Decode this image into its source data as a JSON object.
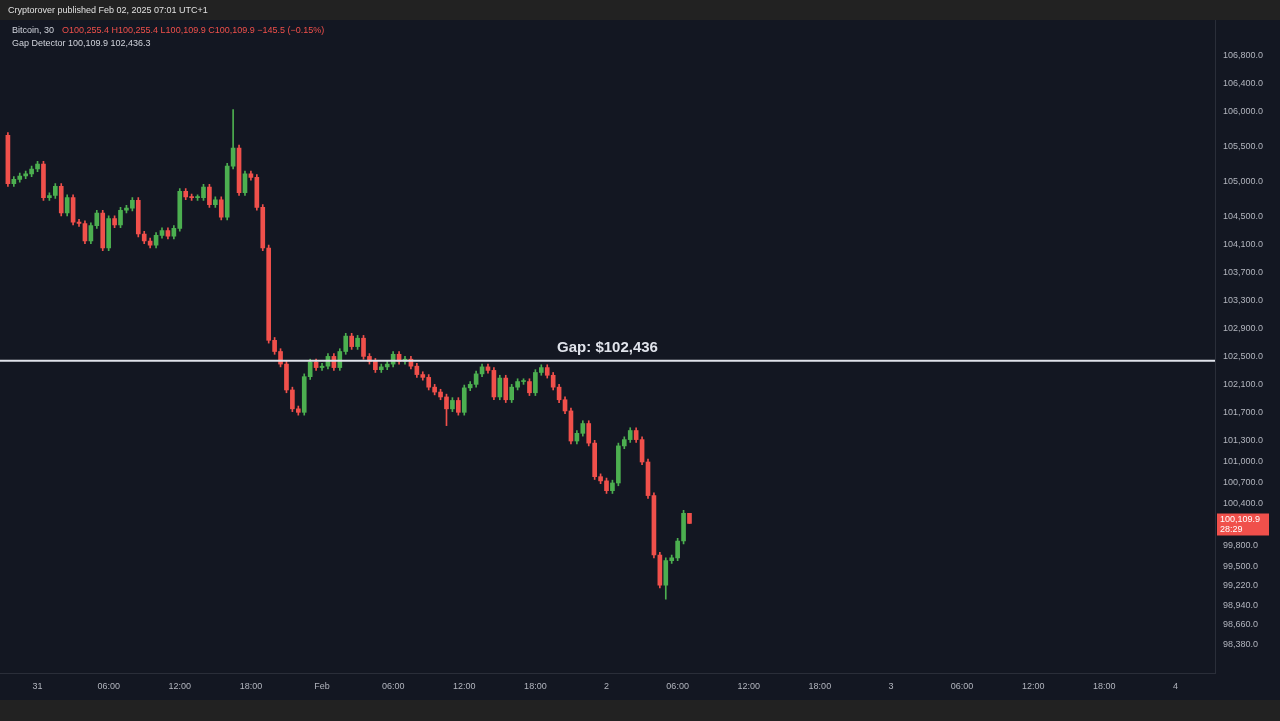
{
  "chart_data": {
    "type": "candlestick",
    "title": "Bitcoin, 30",
    "subtitle": "O100,255.4 H100,255.4 L100,109.9 C100,109.9 −145.5 (−0.15%)",
    "annotations": [
      "Cryptorover published Feb 02, 2025 07:01 UTC+1",
      "Gap Detector 100,109.9 102,436.3",
      "28:29",
      "100,109.9"
    ],
    "x": [
      "2025-01-30T21:30",
      "2025-01-30T22:00",
      "2025-01-30T22:30",
      "2025-01-30T23:00",
      "2025-01-30T23:30",
      "2025-01-31T00:00",
      "2025-01-31T00:30",
      "2025-01-31T01:00",
      "2025-01-31T01:30",
      "2025-01-31T02:00",
      "2025-01-31T02:30",
      "2025-01-31T03:00",
      "2025-01-31T03:30",
      "2025-01-31T04:00",
      "2025-01-31T04:30",
      "2025-01-31T05:00",
      "2025-01-31T05:30",
      "2025-01-31T06:00",
      "2025-01-31T06:30",
      "2025-01-31T07:00",
      "2025-01-31T07:30",
      "2025-01-31T08:00",
      "2025-01-31T08:30",
      "2025-01-31T09:00",
      "2025-01-31T09:30",
      "2025-01-31T10:00",
      "2025-01-31T10:30",
      "2025-01-31T11:00",
      "2025-01-31T11:30",
      "2025-01-31T12:00",
      "2025-01-31T12:30",
      "2025-01-31T13:00",
      "2025-01-31T13:30",
      "2025-01-31T14:00",
      "2025-01-31T14:30",
      "2025-01-31T15:00",
      "2025-01-31T15:30",
      "2025-01-31T16:00",
      "2025-01-31T16:30",
      "2025-01-31T17:00",
      "2025-01-31T17:30",
      "2025-01-31T18:00",
      "2025-01-31T18:30",
      "2025-01-31T19:00",
      "2025-01-31T19:30",
      "2025-01-31T20:00",
      "2025-01-31T20:30",
      "2025-01-31T21:00",
      "2025-01-31T21:30",
      "2025-01-31T22:00",
      "2025-01-31T22:30",
      "2025-01-31T23:00",
      "2025-01-31T23:30",
      "2025-02-01T00:00",
      "2025-02-01T00:30",
      "2025-02-01T01:00",
      "2025-02-01T01:30",
      "2025-02-01T02:00",
      "2025-02-01T02:30",
      "2025-02-01T03:00",
      "2025-02-01T03:30",
      "2025-02-01T04:00",
      "2025-02-01T04:30",
      "2025-02-01T05:00",
      "2025-02-01T05:30",
      "2025-02-01T06:00",
      "2025-02-01T06:30",
      "2025-02-01T07:00",
      "2025-02-01T07:30",
      "2025-02-01T08:00",
      "2025-02-01T08:30",
      "2025-02-01T09:00",
      "2025-02-01T09:30",
      "2025-02-01T10:00",
      "2025-02-01T10:30",
      "2025-02-01T11:00",
      "2025-02-01T11:30",
      "2025-02-01T12:00",
      "2025-02-01T12:30",
      "2025-02-01T13:00",
      "2025-02-01T13:30",
      "2025-02-01T14:00",
      "2025-02-01T14:30",
      "2025-02-01T15:00",
      "2025-02-01T15:30",
      "2025-02-01T16:00",
      "2025-02-01T16:30",
      "2025-02-01T17:00",
      "2025-02-01T17:30",
      "2025-02-01T18:00",
      "2025-02-01T18:30",
      "2025-02-01T19:00",
      "2025-02-01T19:30",
      "2025-02-01T20:00",
      "2025-02-01T20:30",
      "2025-02-01T21:00",
      "2025-02-01T21:30",
      "2025-02-01T22:00",
      "2025-02-01T22:30",
      "2025-02-01T23:00",
      "2025-02-01T23:30",
      "2025-02-02T00:00",
      "2025-02-02T00:30",
      "2025-02-02T01:00",
      "2025-02-02T01:30",
      "2025-02-02T02:00",
      "2025-02-02T02:30",
      "2025-02-02T03:00",
      "2025-02-02T03:30",
      "2025-02-02T04:00",
      "2025-02-02T04:30",
      "2025-02-02T05:00",
      "2025-02-02T05:30",
      "2025-02-02T06:00",
      "2025-02-02T06:30",
      "2025-02-02T07:00"
    ],
    "ohlc": [
      [
        105660,
        105700,
        104930,
        104970
      ],
      [
        104970,
        105070,
        104930,
        105030
      ],
      [
        105030,
        105120,
        104990,
        105080
      ],
      [
        105080,
        105150,
        105040,
        105110
      ],
      [
        105110,
        105220,
        105070,
        105180
      ],
      [
        105180,
        105290,
        105140,
        105250
      ],
      [
        105250,
        105290,
        104730,
        104770
      ],
      [
        104770,
        104840,
        104730,
        104800
      ],
      [
        104800,
        104970,
        104760,
        104930
      ],
      [
        104930,
        104970,
        104510,
        104550
      ],
      [
        104550,
        104810,
        104510,
        104770
      ],
      [
        104770,
        104810,
        104380,
        104420
      ],
      [
        104420,
        104460,
        104360,
        104400
      ],
      [
        104400,
        104440,
        104110,
        104150
      ],
      [
        104150,
        104410,
        104110,
        104370
      ],
      [
        104370,
        104590,
        104330,
        104550
      ],
      [
        104550,
        104590,
        104010,
        104050
      ],
      [
        104050,
        104510,
        104010,
        104470
      ],
      [
        104470,
        104510,
        104340,
        104380
      ],
      [
        104380,
        104630,
        104340,
        104590
      ],
      [
        104590,
        104660,
        104550,
        104620
      ],
      [
        104620,
        104770,
        104580,
        104730
      ],
      [
        104730,
        104770,
        104210,
        104250
      ],
      [
        104250,
        104290,
        104110,
        104150
      ],
      [
        104150,
        104190,
        104050,
        104090
      ],
      [
        104090,
        104270,
        104050,
        104230
      ],
      [
        104230,
        104340,
        104190,
        104300
      ],
      [
        104300,
        104340,
        104180,
        104220
      ],
      [
        104220,
        104370,
        104180,
        104330
      ],
      [
        104330,
        104900,
        104290,
        104860
      ],
      [
        104860,
        104900,
        104740,
        104780
      ],
      [
        104780,
        104820,
        104730,
        104770
      ],
      [
        104770,
        104810,
        104730,
        104770
      ],
      [
        104770,
        104960,
        104730,
        104920
      ],
      [
        104920,
        104960,
        104630,
        104670
      ],
      [
        104670,
        104780,
        104630,
        104740
      ],
      [
        104740,
        104780,
        104450,
        104490
      ],
      [
        104490,
        105260,
        104450,
        105220
      ],
      [
        105220,
        106030,
        105180,
        105480
      ],
      [
        105480,
        105520,
        104800,
        104840
      ],
      [
        104840,
        105150,
        104800,
        105110
      ],
      [
        105110,
        105150,
        105020,
        105060
      ],
      [
        105060,
        105100,
        104590,
        104630
      ],
      [
        104630,
        104670,
        104010,
        104050
      ],
      [
        104050,
        104090,
        102690,
        102730
      ],
      [
        102730,
        102770,
        102530,
        102570
      ],
      [
        102570,
        102610,
        102350,
        102390
      ],
      [
        102390,
        102430,
        101980,
        102020
      ],
      [
        102020,
        102060,
        101710,
        101750
      ],
      [
        101750,
        101790,
        101660,
        101700
      ],
      [
        101700,
        102250,
        101660,
        102210
      ],
      [
        102210,
        102460,
        102170,
        102420
      ],
      [
        102420,
        102460,
        102300,
        102340
      ],
      [
        102340,
        102400,
        102300,
        102360
      ],
      [
        102360,
        102540,
        102320,
        102500
      ],
      [
        102500,
        102540,
        102300,
        102340
      ],
      [
        102340,
        102610,
        102300,
        102570
      ],
      [
        102570,
        102830,
        102530,
        102790
      ],
      [
        102790,
        102830,
        102600,
        102640
      ],
      [
        102640,
        102800,
        102600,
        102760
      ],
      [
        102760,
        102800,
        102460,
        102500
      ],
      [
        102500,
        102540,
        102390,
        102430
      ],
      [
        102430,
        102470,
        102270,
        102310
      ],
      [
        102310,
        102390,
        102270,
        102350
      ],
      [
        102350,
        102430,
        102310,
        102390
      ],
      [
        102390,
        102570,
        102350,
        102530
      ],
      [
        102530,
        102570,
        102390,
        102430
      ],
      [
        102430,
        102500,
        102390,
        102460
      ],
      [
        102460,
        102500,
        102320,
        102360
      ],
      [
        102360,
        102400,
        102200,
        102240
      ],
      [
        102240,
        102280,
        102160,
        102200
      ],
      [
        102200,
        102240,
        102020,
        102060
      ],
      [
        102060,
        102100,
        101950,
        101990
      ],
      [
        101990,
        102030,
        101880,
        101920
      ],
      [
        101920,
        101960,
        101510,
        101750
      ],
      [
        101750,
        101910,
        101710,
        101870
      ],
      [
        101870,
        101910,
        101660,
        101700
      ],
      [
        101700,
        102090,
        101660,
        102050
      ],
      [
        102050,
        102140,
        102010,
        102100
      ],
      [
        102100,
        102290,
        102060,
        102250
      ],
      [
        102250,
        102390,
        102210,
        102350
      ],
      [
        102350,
        102390,
        102260,
        102300
      ],
      [
        102300,
        102340,
        101880,
        101920
      ],
      [
        101920,
        102230,
        101880,
        102190
      ],
      [
        102190,
        102230,
        101840,
        101880
      ],
      [
        101880,
        102100,
        101840,
        102060
      ],
      [
        102060,
        102180,
        102020,
        102140
      ],
      [
        102140,
        102180,
        102100,
        102140
      ],
      [
        102140,
        102180,
        101940,
        101980
      ],
      [
        101980,
        102310,
        101940,
        102270
      ],
      [
        102270,
        102380,
        102230,
        102340
      ],
      [
        102340,
        102380,
        102190,
        102230
      ],
      [
        102230,
        102270,
        102020,
        102060
      ],
      [
        102060,
        102100,
        101840,
        101880
      ],
      [
        101880,
        101920,
        101680,
        101720
      ],
      [
        101720,
        101760,
        101250,
        101290
      ],
      [
        101290,
        101440,
        101250,
        101400
      ],
      [
        101400,
        101580,
        101360,
        101540
      ],
      [
        101540,
        101580,
        101220,
        101260
      ],
      [
        101260,
        101300,
        100740,
        100780
      ],
      [
        100780,
        100820,
        100680,
        100720
      ],
      [
        100720,
        100760,
        100540,
        100580
      ],
      [
        100580,
        100730,
        100540,
        100690
      ],
      [
        100690,
        101260,
        100650,
        101220
      ],
      [
        101220,
        101350,
        101180,
        101310
      ],
      [
        101310,
        101480,
        101270,
        101440
      ],
      [
        101440,
        101480,
        101270,
        101310
      ],
      [
        101310,
        101350,
        100950,
        100990
      ],
      [
        100990,
        101030,
        100470,
        100510
      ],
      [
        100510,
        100550,
        99620,
        99660
      ],
      [
        99660,
        99700,
        99190,
        99230
      ],
      [
        99230,
        99620,
        99030,
        99580
      ],
      [
        99580,
        99660,
        99540,
        99620
      ],
      [
        99620,
        99900,
        99580,
        99860
      ],
      [
        99860,
        100300,
        99820,
        100255.4
      ],
      [
        100255.4,
        100255.4,
        100109.9,
        100109.9
      ]
    ],
    "xlim": [
      "2025-01-30T20:50",
      "2025-02-04T03:20"
    ],
    "xticks": [
      {
        "value": "2025-01-31T00:00",
        "label": "31"
      },
      {
        "value": "2025-01-31T06:00",
        "label": "06:00"
      },
      {
        "value": "2025-01-31T12:00",
        "label": "12:00"
      },
      {
        "value": "2025-01-31T18:00",
        "label": "18:00"
      },
      {
        "value": "2025-02-01T00:00",
        "label": "Feb"
      },
      {
        "value": "2025-02-01T06:00",
        "label": "06:00"
      },
      {
        "value": "2025-02-01T12:00",
        "label": "12:00"
      },
      {
        "value": "2025-02-01T18:00",
        "label": "18:00"
      },
      {
        "value": "2025-02-02T00:00",
        "label": "2"
      },
      {
        "value": "2025-02-02T06:00",
        "label": "06:00"
      },
      {
        "value": "2025-02-02T12:00",
        "label": "12:00"
      },
      {
        "value": "2025-02-02T18:00",
        "label": "18:00"
      },
      {
        "value": "2025-02-03T00:00",
        "label": "3"
      },
      {
        "value": "2025-02-03T06:00",
        "label": "06:00"
      },
      {
        "value": "2025-02-03T12:00",
        "label": "12:00"
      },
      {
        "value": "2025-02-03T18:00",
        "label": "18:00"
      },
      {
        "value": "2025-02-04T00:00",
        "label": "4"
      }
    ],
    "ylim": [
      97970,
      107310
    ],
    "yticks": [
      {
        "value": 106800,
        "label": "106,800.0"
      },
      {
        "value": 106400,
        "label": "106,400.0"
      },
      {
        "value": 106000,
        "label": "106,000.0"
      },
      {
        "value": 105500,
        "label": "105,500.0"
      },
      {
        "value": 105000,
        "label": "105,000.0"
      },
      {
        "value": 104500,
        "label": "104,500.0"
      },
      {
        "value": 104100,
        "label": "104,100.0"
      },
      {
        "value": 103700,
        "label": "103,700.0"
      },
      {
        "value": 103300,
        "label": "103,300.0"
      },
      {
        "value": 102900,
        "label": "102,900.0"
      },
      {
        "value": 102500,
        "label": "102,500.0"
      },
      {
        "value": 102100,
        "label": "102,100.0"
      },
      {
        "value": 101700,
        "label": "101,700.0"
      },
      {
        "value": 101300,
        "label": "101,300.0"
      },
      {
        "value": 101000,
        "label": "101,000.0"
      },
      {
        "value": 100700,
        "label": "100,700.0"
      },
      {
        "value": 100400,
        "label": "100,400.0"
      },
      {
        "value": 99800,
        "label": "99,800.0"
      },
      {
        "value": 99500,
        "label": "99,500.0"
      },
      {
        "value": 99220,
        "label": "99,220.0"
      },
      {
        "value": 98940,
        "label": "98,940.0"
      },
      {
        "value": 98660,
        "label": "98,660.0"
      },
      {
        "value": 98380,
        "label": "98,380.0"
      }
    ],
    "ref_lines": [
      {
        "axis": "y",
        "value": 102436,
        "label": "Gap: $102,436",
        "color": "#e0e3eb"
      }
    ],
    "grid": false,
    "legend": false
  }
}
